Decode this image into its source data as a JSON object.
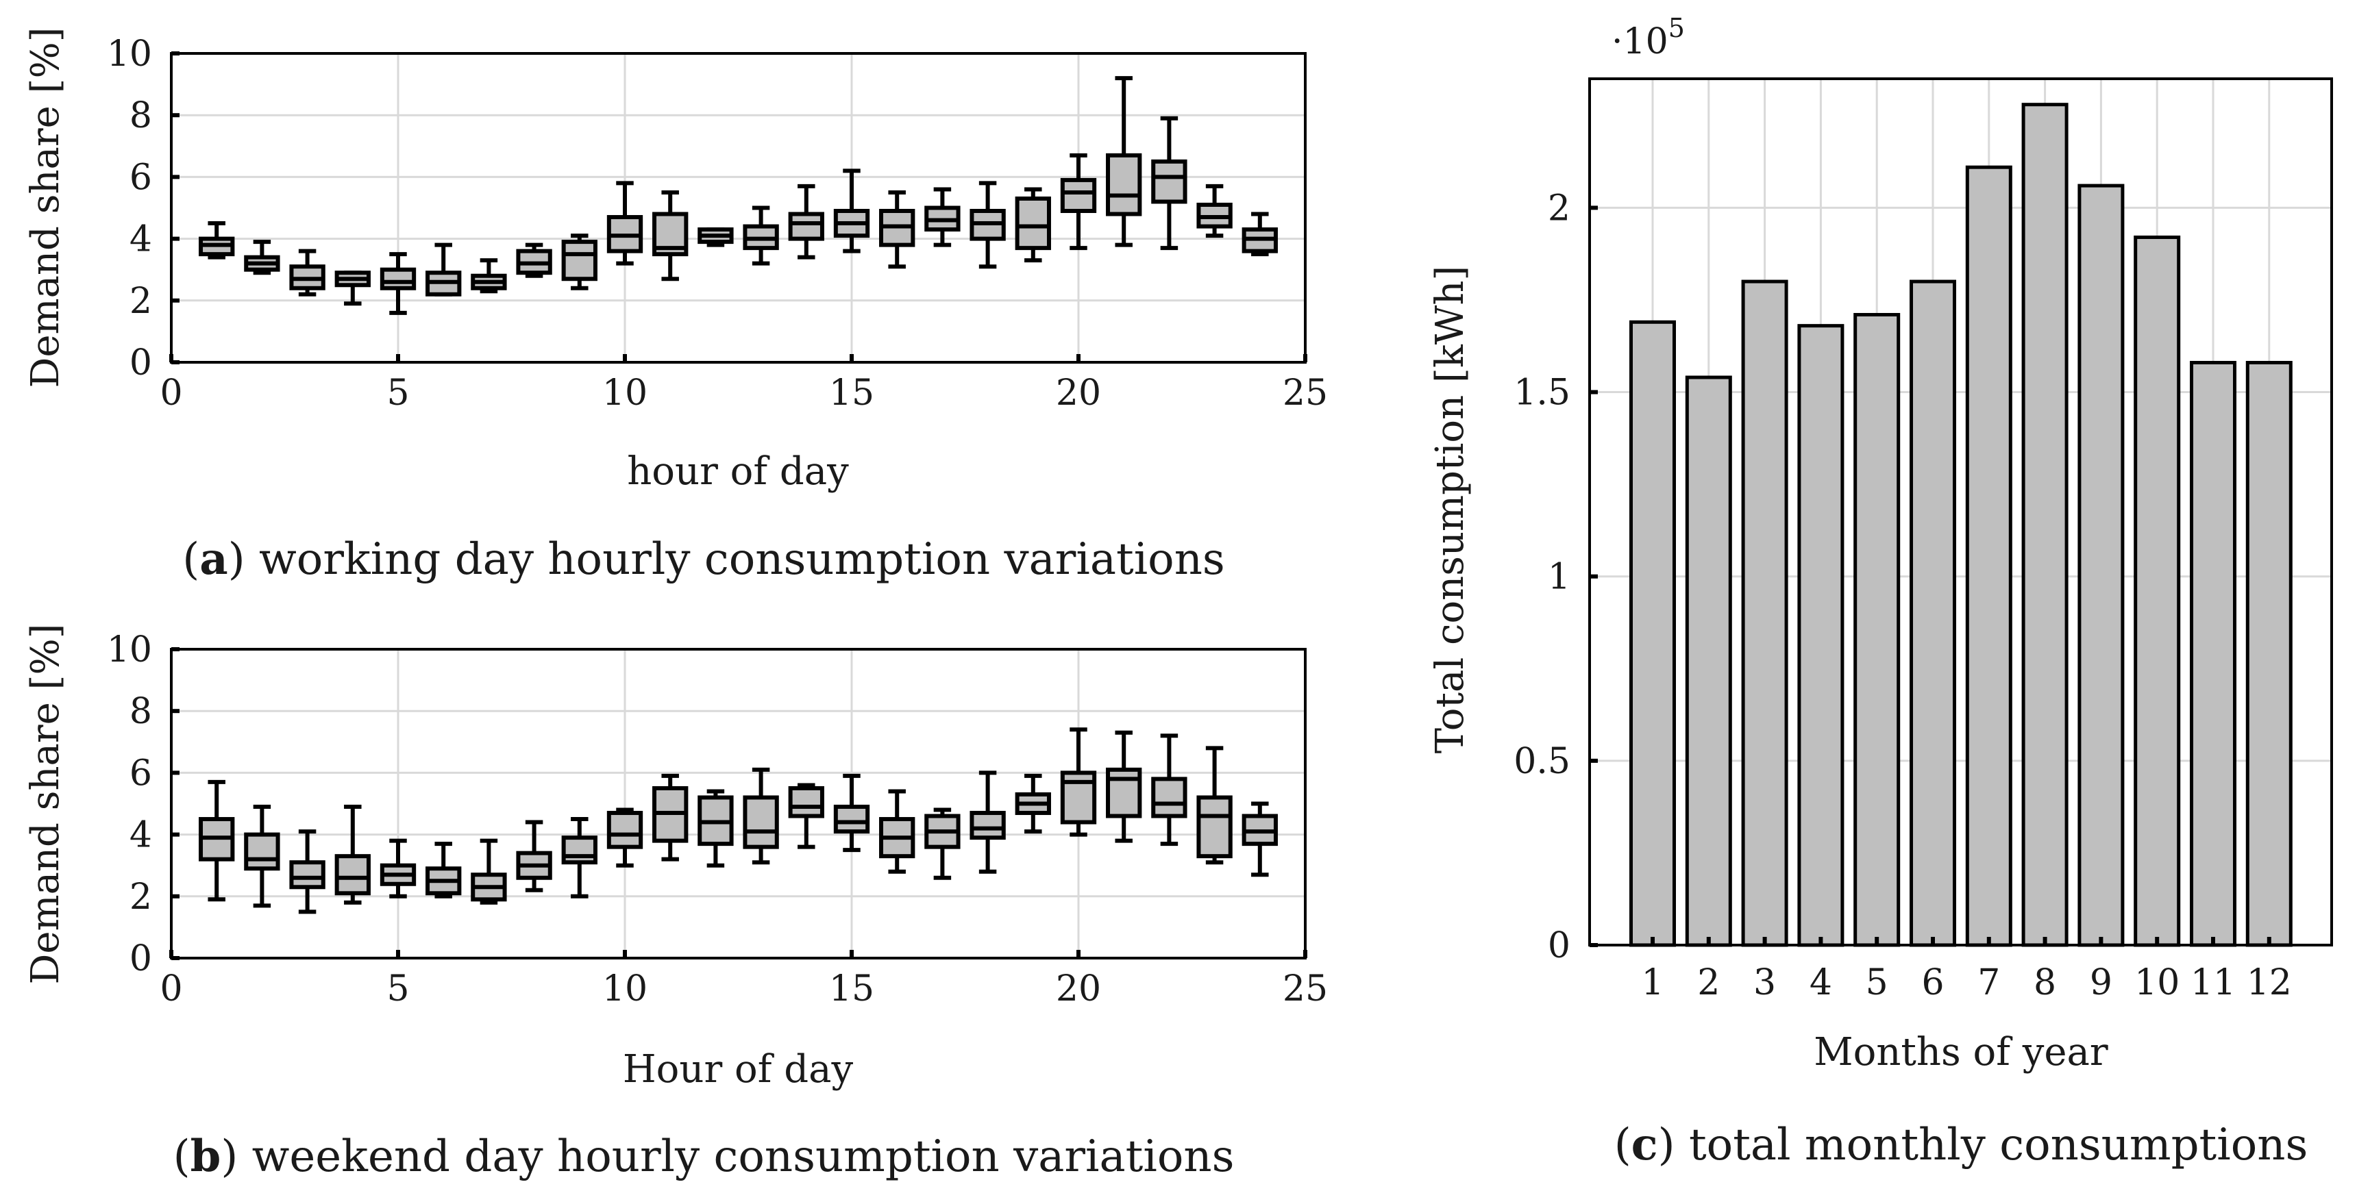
{
  "chart_data": [
    {
      "id": "a",
      "type": "box",
      "caption_letter": "a",
      "caption_text": "working day hourly consumption variations",
      "xlabel": "hour of day",
      "ylabel": "Demand share [%]",
      "xlim": [
        0,
        25
      ],
      "ylim": [
        0,
        10
      ],
      "xticks": [
        0,
        5,
        10,
        15,
        20,
        25
      ],
      "yticks": [
        0,
        2,
        4,
        6,
        8,
        10
      ],
      "boxes": [
        {
          "x": 1,
          "min": 3.4,
          "q1": 3.5,
          "median": 3.8,
          "q3": 4.0,
          "max": 4.5
        },
        {
          "x": 2,
          "min": 2.9,
          "q1": 3.0,
          "median": 3.2,
          "q3": 3.4,
          "max": 3.9
        },
        {
          "x": 3,
          "min": 2.2,
          "q1": 2.4,
          "median": 2.7,
          "q3": 3.1,
          "max": 3.6
        },
        {
          "x": 4,
          "min": 1.9,
          "q1": 2.5,
          "median": 2.7,
          "q3": 2.9,
          "max": 2.9
        },
        {
          "x": 5,
          "min": 1.6,
          "q1": 2.4,
          "median": 2.6,
          "q3": 3.0,
          "max": 3.5
        },
        {
          "x": 6,
          "min": 2.2,
          "q1": 2.2,
          "median": 2.6,
          "q3": 2.9,
          "max": 3.8
        },
        {
          "x": 7,
          "min": 2.3,
          "q1": 2.4,
          "median": 2.6,
          "q3": 2.8,
          "max": 3.3
        },
        {
          "x": 8,
          "min": 2.8,
          "q1": 2.9,
          "median": 3.2,
          "q3": 3.6,
          "max": 3.8
        },
        {
          "x": 9,
          "min": 2.4,
          "q1": 2.7,
          "median": 3.5,
          "q3": 3.9,
          "max": 4.1
        },
        {
          "x": 10,
          "min": 3.2,
          "q1": 3.6,
          "median": 4.1,
          "q3": 4.7,
          "max": 5.8
        },
        {
          "x": 11,
          "min": 2.7,
          "q1": 3.5,
          "median": 3.7,
          "q3": 4.8,
          "max": 5.5
        },
        {
          "x": 12,
          "min": 3.8,
          "q1": 3.9,
          "median": 4.1,
          "q3": 4.3,
          "max": 4.3
        },
        {
          "x": 13,
          "min": 3.2,
          "q1": 3.7,
          "median": 4.0,
          "q3": 4.4,
          "max": 5.0
        },
        {
          "x": 14,
          "min": 3.4,
          "q1": 4.0,
          "median": 4.5,
          "q3": 4.8,
          "max": 5.7
        },
        {
          "x": 15,
          "min": 3.6,
          "q1": 4.1,
          "median": 4.5,
          "q3": 4.9,
          "max": 6.2
        },
        {
          "x": 16,
          "min": 3.1,
          "q1": 3.8,
          "median": 4.4,
          "q3": 4.9,
          "max": 5.5
        },
        {
          "x": 17,
          "min": 3.8,
          "q1": 4.3,
          "median": 4.6,
          "q3": 5.0,
          "max": 5.6
        },
        {
          "x": 18,
          "min": 3.1,
          "q1": 4.0,
          "median": 4.5,
          "q3": 4.9,
          "max": 5.8
        },
        {
          "x": 19,
          "min": 3.3,
          "q1": 3.7,
          "median": 4.4,
          "q3": 5.3,
          "max": 5.6
        },
        {
          "x": 20,
          "min": 3.7,
          "q1": 4.9,
          "median": 5.5,
          "q3": 5.9,
          "max": 6.7
        },
        {
          "x": 21,
          "min": 3.8,
          "q1": 4.8,
          "median": 5.4,
          "q3": 6.7,
          "max": 9.2
        },
        {
          "x": 22,
          "min": 3.7,
          "q1": 5.2,
          "median": 6.0,
          "q3": 6.5,
          "max": 7.9
        },
        {
          "x": 23,
          "min": 4.1,
          "q1": 4.4,
          "median": 4.7,
          "q3": 5.1,
          "max": 5.7
        },
        {
          "x": 24,
          "min": 3.5,
          "q1": 3.6,
          "median": 4.0,
          "q3": 4.3,
          "max": 4.8
        }
      ]
    },
    {
      "id": "b",
      "type": "box",
      "caption_letter": "b",
      "caption_text": "weekend day hourly consumption variations",
      "xlabel": "Hour of day",
      "ylabel": "Demand share [%]",
      "xlim": [
        0,
        25
      ],
      "ylim": [
        0,
        10
      ],
      "xticks": [
        0,
        5,
        10,
        15,
        20,
        25
      ],
      "yticks": [
        0,
        2,
        4,
        6,
        8,
        10
      ],
      "boxes": [
        {
          "x": 1,
          "min": 1.9,
          "q1": 3.2,
          "median": 3.9,
          "q3": 4.5,
          "max": 5.7
        },
        {
          "x": 2,
          "min": 1.7,
          "q1": 2.9,
          "median": 3.2,
          "q3": 4.0,
          "max": 4.9
        },
        {
          "x": 3,
          "min": 1.5,
          "q1": 2.3,
          "median": 2.6,
          "q3": 3.1,
          "max": 4.1
        },
        {
          "x": 4,
          "min": 1.8,
          "q1": 2.1,
          "median": 2.6,
          "q3": 3.3,
          "max": 4.9
        },
        {
          "x": 5,
          "min": 2.0,
          "q1": 2.4,
          "median": 2.7,
          "q3": 3.0,
          "max": 3.8
        },
        {
          "x": 6,
          "min": 2.0,
          "q1": 2.1,
          "median": 2.5,
          "q3": 2.9,
          "max": 3.7
        },
        {
          "x": 7,
          "min": 1.8,
          "q1": 1.9,
          "median": 2.3,
          "q3": 2.7,
          "max": 3.8
        },
        {
          "x": 8,
          "min": 2.2,
          "q1": 2.6,
          "median": 3.0,
          "q3": 3.4,
          "max": 4.4
        },
        {
          "x": 9,
          "min": 2.0,
          "q1": 3.1,
          "median": 3.3,
          "q3": 3.9,
          "max": 4.5
        },
        {
          "x": 10,
          "min": 3.0,
          "q1": 3.6,
          "median": 4.0,
          "q3": 4.7,
          "max": 4.8
        },
        {
          "x": 11,
          "min": 3.2,
          "q1": 3.8,
          "median": 4.7,
          "q3": 5.5,
          "max": 5.9
        },
        {
          "x": 12,
          "min": 3.0,
          "q1": 3.7,
          "median": 4.4,
          "q3": 5.2,
          "max": 5.4
        },
        {
          "x": 13,
          "min": 3.1,
          "q1": 3.6,
          "median": 4.1,
          "q3": 5.2,
          "max": 6.1
        },
        {
          "x": 14,
          "min": 3.6,
          "q1": 4.6,
          "median": 4.9,
          "q3": 5.5,
          "max": 5.6
        },
        {
          "x": 15,
          "min": 3.5,
          "q1": 4.1,
          "median": 4.4,
          "q3": 4.9,
          "max": 5.9
        },
        {
          "x": 16,
          "min": 2.8,
          "q1": 3.3,
          "median": 3.9,
          "q3": 4.5,
          "max": 5.4
        },
        {
          "x": 17,
          "min": 2.6,
          "q1": 3.6,
          "median": 4.1,
          "q3": 4.6,
          "max": 4.8
        },
        {
          "x": 18,
          "min": 2.8,
          "q1": 3.9,
          "median": 4.2,
          "q3": 4.7,
          "max": 6.0
        },
        {
          "x": 19,
          "min": 4.1,
          "q1": 4.7,
          "median": 5.0,
          "q3": 5.3,
          "max": 5.9
        },
        {
          "x": 20,
          "min": 4.0,
          "q1": 4.4,
          "median": 5.7,
          "q3": 6.0,
          "max": 7.4
        },
        {
          "x": 21,
          "min": 3.8,
          "q1": 4.6,
          "median": 5.8,
          "q3": 6.1,
          "max": 7.3
        },
        {
          "x": 22,
          "min": 3.7,
          "q1": 4.6,
          "median": 5.0,
          "q3": 5.8,
          "max": 7.2
        },
        {
          "x": 23,
          "min": 3.1,
          "q1": 3.3,
          "median": 4.6,
          "q3": 5.2,
          "max": 6.8
        },
        {
          "x": 24,
          "min": 2.7,
          "q1": 3.7,
          "median": 4.1,
          "q3": 4.6,
          "max": 5.0
        }
      ]
    },
    {
      "id": "c",
      "type": "bar",
      "caption_letter": "c",
      "caption_text": "total monthly consumptions",
      "xlabel": "Months of year",
      "ylabel": "Total consumption [kWh]",
      "scale_label": "·10",
      "scale_exponent": "5",
      "ylim": [
        0,
        2.35
      ],
      "yticks": [
        0,
        0.5,
        1,
        1.5,
        2
      ],
      "ytick_labels": [
        "0",
        "0.5",
        "1",
        "1.5",
        "2"
      ],
      "categories": [
        "1",
        "2",
        "3",
        "4",
        "5",
        "6",
        "7",
        "8",
        "9",
        "10",
        "11",
        "12"
      ],
      "values": [
        1.69,
        1.54,
        1.8,
        1.68,
        1.71,
        1.8,
        2.11,
        2.28,
        2.06,
        1.92,
        1.58,
        1.58
      ]
    }
  ]
}
